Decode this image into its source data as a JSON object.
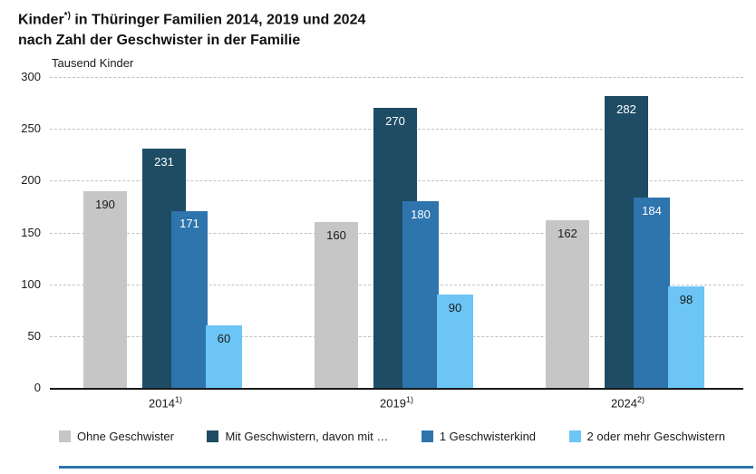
{
  "title": {
    "line1_prefix": "Kinder",
    "line1_sup": "*)",
    "line1_rest": " in Thüringer Familien 2014, 2019 und 2024",
    "line2": "nach Zahl der Geschwister in der Familie"
  },
  "accent_line_color": "#2e74ad",
  "chart_data": {
    "type": "bar",
    "title": "Kinder*) in Thüringer Familien 2014, 2019 und 2024 nach Zahl der Geschwister in der Familie",
    "ylabel": "Tausend Kinder",
    "xlabel": "",
    "ylim": [
      0,
      300
    ],
    "yticks": [
      0,
      50,
      100,
      150,
      200,
      250,
      300
    ],
    "grid": "dashed horizontal",
    "legend_position": "bottom",
    "categories": [
      "2014",
      "2019",
      "2024"
    ],
    "category_superscripts": [
      "1)",
      "1)",
      "2)"
    ],
    "series": [
      {
        "name": "Ohne Geschwister",
        "color": "#c6c6c6",
        "label_color": "#1a1a1a",
        "values": [
          190,
          160,
          162
        ]
      },
      {
        "name": "Mit Geschwistern, davon mit …",
        "color": "#1d4c64",
        "label_color": "#ffffff",
        "values": [
          231,
          270,
          282
        ]
      },
      {
        "name": "1 Geschwisterkind",
        "color": "#2e74ad",
        "label_color": "#ffffff",
        "values": [
          171,
          180,
          184
        ]
      },
      {
        "name": "2 oder mehr Geschwistern",
        "color": "#6cc5f5",
        "label_color": "#1a1a1a",
        "values": [
          60,
          90,
          98
        ]
      }
    ]
  }
}
